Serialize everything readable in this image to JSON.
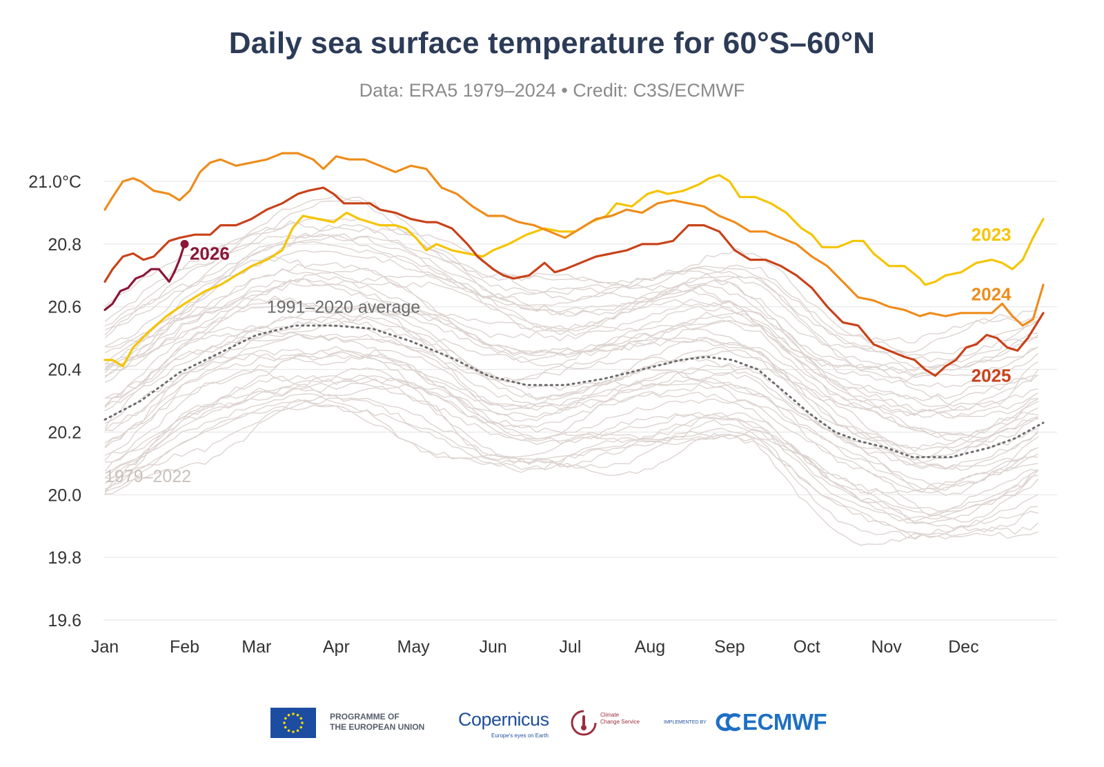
{
  "title": "Daily sea surface temperature for 60°S–60°N",
  "subtitle": "Data: ERA5 1979–2024 • Credit: C3S/ECMWF",
  "footer": {
    "eu_line1": "PROGRAMME OF",
    "eu_line2": "THE EUROPEAN UNION",
    "copernicus": "opernicus",
    "copernicus_tagline": "Europe's eyes on Earth",
    "c3s_line1": "Climate",
    "c3s_line2": "Change Service",
    "implemented_by": "IMPLEMENTED BY",
    "ecmwf": "ECMWF"
  },
  "chart_data": {
    "type": "line",
    "xlabel": "",
    "ylabel": "",
    "ylim": [
      19.6,
      21.1
    ],
    "yticks": [
      "19.6",
      "19.8",
      "20.0",
      "20.2",
      "20.4",
      "20.6",
      "20.8",
      "21.0°C"
    ],
    "ytick_values": [
      19.6,
      19.8,
      20.0,
      20.2,
      20.4,
      20.6,
      20.8,
      21.0
    ],
    "xticks": [
      "Jan",
      "Feb",
      "Mar",
      "Apr",
      "May",
      "Jun",
      "Jul",
      "Aug",
      "Sep",
      "Oct",
      "Nov",
      "Dec"
    ],
    "xtick_days": [
      1,
      32,
      60,
      91,
      121,
      152,
      182,
      213,
      244,
      274,
      305,
      335
    ],
    "x_domain_days": [
      1,
      366
    ],
    "grid": "horizontal",
    "legend": "inline labels",
    "series": [
      {
        "name": "2023",
        "color": "#f5c400",
        "label_day": 338,
        "label_value": 20.83,
        "points": [
          [
            1,
            20.43
          ],
          [
            4,
            20.43
          ],
          [
            8,
            20.41
          ],
          [
            12,
            20.47
          ],
          [
            18,
            20.52
          ],
          [
            25,
            20.57
          ],
          [
            32,
            20.61
          ],
          [
            40,
            20.65
          ],
          [
            46,
            20.67
          ],
          [
            52,
            20.7
          ],
          [
            58,
            20.73
          ],
          [
            64,
            20.75
          ],
          [
            70,
            20.78
          ],
          [
            74,
            20.85
          ],
          [
            78,
            20.89
          ],
          [
            84,
            20.88
          ],
          [
            90,
            20.87
          ],
          [
            95,
            20.9
          ],
          [
            100,
            20.88
          ],
          [
            108,
            20.86
          ],
          [
            114,
            20.86
          ],
          [
            118,
            20.85
          ],
          [
            122,
            20.82
          ],
          [
            126,
            20.78
          ],
          [
            130,
            20.8
          ],
          [
            136,
            20.78
          ],
          [
            142,
            20.77
          ],
          [
            148,
            20.76
          ],
          [
            152,
            20.78
          ],
          [
            158,
            20.8
          ],
          [
            165,
            20.83
          ],
          [
            172,
            20.85
          ],
          [
            178,
            20.84
          ],
          [
            184,
            20.84
          ],
          [
            190,
            20.87
          ],
          [
            196,
            20.89
          ],
          [
            200,
            20.93
          ],
          [
            206,
            20.92
          ],
          [
            212,
            20.96
          ],
          [
            216,
            20.97
          ],
          [
            220,
            20.96
          ],
          [
            226,
            20.97
          ],
          [
            232,
            20.99
          ],
          [
            236,
            21.01
          ],
          [
            240,
            21.02
          ],
          [
            244,
            21.0
          ],
          [
            248,
            20.95
          ],
          [
            254,
            20.95
          ],
          [
            260,
            20.93
          ],
          [
            266,
            20.9
          ],
          [
            272,
            20.85
          ],
          [
            276,
            20.83
          ],
          [
            280,
            20.79
          ],
          [
            286,
            20.79
          ],
          [
            292,
            20.81
          ],
          [
            296,
            20.81
          ],
          [
            300,
            20.77
          ],
          [
            306,
            20.73
          ],
          [
            312,
            20.73
          ],
          [
            318,
            20.69
          ],
          [
            320,
            20.67
          ],
          [
            324,
            20.68
          ],
          [
            328,
            20.7
          ],
          [
            334,
            20.71
          ],
          [
            340,
            20.74
          ],
          [
            346,
            20.75
          ],
          [
            350,
            20.74
          ],
          [
            354,
            20.72
          ],
          [
            358,
            20.75
          ],
          [
            362,
            20.82
          ],
          [
            366,
            20.88
          ]
        ]
      },
      {
        "name": "2024",
        "color": "#ee8c1b",
        "label_day": 338,
        "label_value": 20.64,
        "points": [
          [
            1,
            20.91
          ],
          [
            4,
            20.95
          ],
          [
            8,
            21.0
          ],
          [
            12,
            21.01
          ],
          [
            15,
            21.0
          ],
          [
            20,
            20.97
          ],
          [
            26,
            20.96
          ],
          [
            30,
            20.94
          ],
          [
            34,
            20.97
          ],
          [
            38,
            21.03
          ],
          [
            42,
            21.06
          ],
          [
            46,
            21.07
          ],
          [
            52,
            21.05
          ],
          [
            58,
            21.06
          ],
          [
            64,
            21.07
          ],
          [
            70,
            21.09
          ],
          [
            76,
            21.09
          ],
          [
            82,
            21.07
          ],
          [
            86,
            21.04
          ],
          [
            91,
            21.08
          ],
          [
            96,
            21.07
          ],
          [
            102,
            21.07
          ],
          [
            108,
            21.05
          ],
          [
            114,
            21.03
          ],
          [
            120,
            21.05
          ],
          [
            126,
            21.04
          ],
          [
            132,
            20.98
          ],
          [
            138,
            20.96
          ],
          [
            144,
            20.92
          ],
          [
            150,
            20.89
          ],
          [
            156,
            20.89
          ],
          [
            162,
            20.87
          ],
          [
            168,
            20.86
          ],
          [
            174,
            20.84
          ],
          [
            180,
            20.82
          ],
          [
            186,
            20.85
          ],
          [
            192,
            20.88
          ],
          [
            198,
            20.89
          ],
          [
            204,
            20.91
          ],
          [
            210,
            20.9
          ],
          [
            216,
            20.93
          ],
          [
            222,
            20.94
          ],
          [
            228,
            20.93
          ],
          [
            234,
            20.92
          ],
          [
            240,
            20.89
          ],
          [
            246,
            20.87
          ],
          [
            252,
            20.84
          ],
          [
            258,
            20.84
          ],
          [
            264,
            20.82
          ],
          [
            270,
            20.8
          ],
          [
            276,
            20.76
          ],
          [
            282,
            20.73
          ],
          [
            288,
            20.68
          ],
          [
            294,
            20.63
          ],
          [
            300,
            20.62
          ],
          [
            306,
            20.6
          ],
          [
            312,
            20.59
          ],
          [
            318,
            20.57
          ],
          [
            322,
            20.58
          ],
          [
            328,
            20.57
          ],
          [
            334,
            20.58
          ],
          [
            340,
            20.58
          ],
          [
            346,
            20.58
          ],
          [
            350,
            20.61
          ],
          [
            354,
            20.57
          ],
          [
            358,
            20.54
          ],
          [
            362,
            20.56
          ],
          [
            366,
            20.67
          ]
        ]
      },
      {
        "name": "2025",
        "color": "#c8421a",
        "label_day": 338,
        "label_value": 20.38,
        "points": [
          [
            1,
            20.68
          ],
          [
            4,
            20.72
          ],
          [
            8,
            20.76
          ],
          [
            12,
            20.77
          ],
          [
            16,
            20.75
          ],
          [
            20,
            20.76
          ],
          [
            26,
            20.81
          ],
          [
            30,
            20.82
          ],
          [
            36,
            20.83
          ],
          [
            42,
            20.83
          ],
          [
            46,
            20.86
          ],
          [
            52,
            20.86
          ],
          [
            58,
            20.88
          ],
          [
            64,
            20.91
          ],
          [
            70,
            20.93
          ],
          [
            76,
            20.96
          ],
          [
            80,
            20.97
          ],
          [
            86,
            20.98
          ],
          [
            90,
            20.96
          ],
          [
            94,
            20.93
          ],
          [
            98,
            20.93
          ],
          [
            104,
            20.93
          ],
          [
            108,
            20.91
          ],
          [
            114,
            20.9
          ],
          [
            120,
            20.88
          ],
          [
            126,
            20.87
          ],
          [
            130,
            20.87
          ],
          [
            136,
            20.85
          ],
          [
            142,
            20.8
          ],
          [
            146,
            20.76
          ],
          [
            152,
            20.72
          ],
          [
            156,
            20.7
          ],
          [
            160,
            20.69
          ],
          [
            166,
            20.7
          ],
          [
            172,
            20.74
          ],
          [
            176,
            20.71
          ],
          [
            180,
            20.72
          ],
          [
            186,
            20.74
          ],
          [
            192,
            20.76
          ],
          [
            198,
            20.77
          ],
          [
            204,
            20.78
          ],
          [
            210,
            20.8
          ],
          [
            216,
            20.8
          ],
          [
            222,
            20.81
          ],
          [
            228,
            20.86
          ],
          [
            234,
            20.86
          ],
          [
            240,
            20.84
          ],
          [
            246,
            20.78
          ],
          [
            252,
            20.75
          ],
          [
            258,
            20.75
          ],
          [
            264,
            20.73
          ],
          [
            270,
            20.7
          ],
          [
            276,
            20.66
          ],
          [
            282,
            20.6
          ],
          [
            288,
            20.55
          ],
          [
            294,
            20.54
          ],
          [
            300,
            20.48
          ],
          [
            306,
            20.46
          ],
          [
            312,
            20.44
          ],
          [
            316,
            20.43
          ],
          [
            320,
            20.4
          ],
          [
            324,
            20.38
          ],
          [
            328,
            20.41
          ],
          [
            332,
            20.43
          ],
          [
            336,
            20.47
          ],
          [
            340,
            20.48
          ],
          [
            344,
            20.51
          ],
          [
            348,
            20.5
          ],
          [
            352,
            20.47
          ],
          [
            356,
            20.46
          ],
          [
            360,
            20.5
          ],
          [
            366,
            20.58
          ]
        ]
      },
      {
        "name": "2026",
        "color": "#8b1538",
        "label_day": 34,
        "label_value": 20.77,
        "points": [
          [
            1,
            20.59
          ],
          [
            4,
            20.61
          ],
          [
            7,
            20.65
          ],
          [
            10,
            20.66
          ],
          [
            13,
            20.69
          ],
          [
            16,
            20.7
          ],
          [
            19,
            20.72
          ],
          [
            22,
            20.72
          ],
          [
            24,
            20.7
          ],
          [
            26,
            20.68
          ],
          [
            28,
            20.71
          ],
          [
            30,
            20.75
          ],
          [
            32,
            20.8
          ]
        ]
      },
      {
        "name": "1991–2020 average",
        "color": "#6b6b6b",
        "dashed": true,
        "label_day": 64,
        "label_value": 20.6,
        "points": [
          [
            1,
            20.24
          ],
          [
            15,
            20.3
          ],
          [
            30,
            20.39
          ],
          [
            45,
            20.45
          ],
          [
            60,
            20.51
          ],
          [
            75,
            20.54
          ],
          [
            90,
            20.54
          ],
          [
            105,
            20.53
          ],
          [
            120,
            20.49
          ],
          [
            135,
            20.44
          ],
          [
            150,
            20.38
          ],
          [
            165,
            20.35
          ],
          [
            180,
            20.35
          ],
          [
            195,
            20.37
          ],
          [
            210,
            20.4
          ],
          [
            225,
            20.43
          ],
          [
            235,
            20.44
          ],
          [
            245,
            20.43
          ],
          [
            255,
            20.4
          ],
          [
            265,
            20.33
          ],
          [
            275,
            20.26
          ],
          [
            285,
            20.2
          ],
          [
            295,
            20.17
          ],
          [
            305,
            20.15
          ],
          [
            315,
            20.12
          ],
          [
            330,
            20.12
          ],
          [
            345,
            20.15
          ],
          [
            355,
            20.18
          ],
          [
            366,
            20.23
          ]
        ]
      }
    ],
    "background_series": {
      "name": "1979–2022",
      "color": "#ddd4d1",
      "label_day": 1,
      "label_value": 20.06
    }
  }
}
